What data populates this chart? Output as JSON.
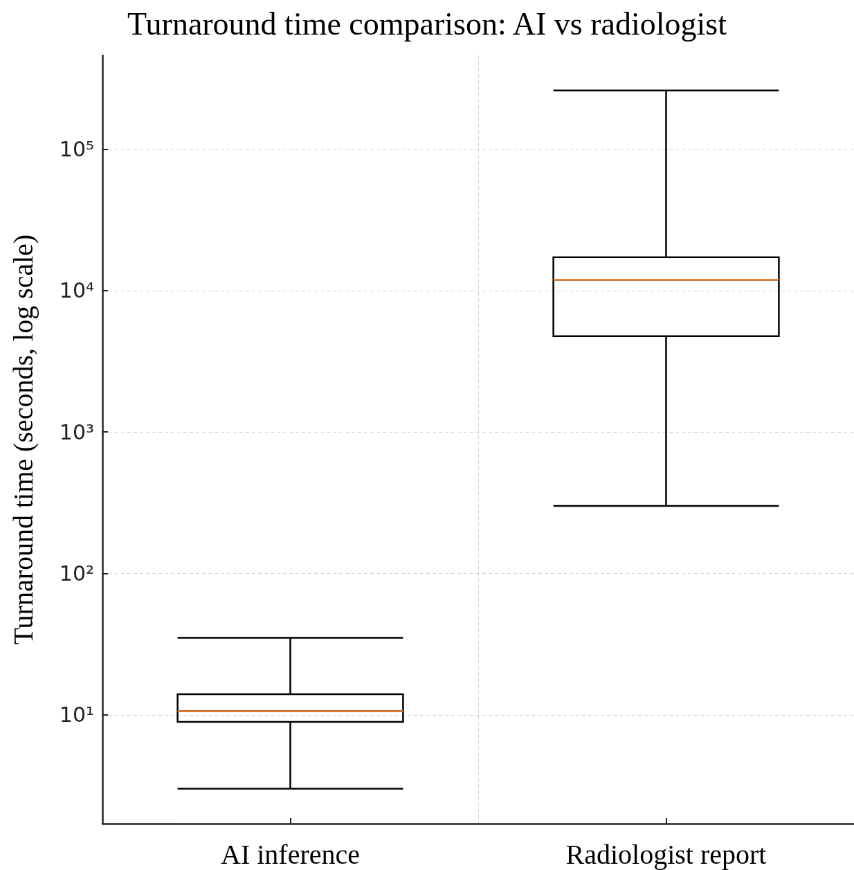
{
  "chart_data": {
    "type": "box",
    "title": "Turnaround time comparison: AI vs radiologist",
    "ylabel": "Turnaround time (seconds, log scale)",
    "categories": [
      "AI inference",
      "Radiologist report"
    ],
    "series": [
      {
        "color": "#000000",
        "boxes": [
          {
            "low": 3,
            "q1": 8.9,
            "median": 10.6,
            "q3": 14,
            "high": 35
          },
          {
            "low": 300,
            "q1": 4750,
            "median": 11900,
            "q3": 17200,
            "high": 260000
          }
        ]
      }
    ],
    "log": true,
    "ylim": [
      1.7,
      460000
    ],
    "yticks": [
      {
        "value": 10,
        "label": "10¹"
      },
      {
        "value": 100,
        "label": "10²"
      },
      {
        "value": 1000,
        "label": "10³"
      },
      {
        "value": 10000,
        "label": "10⁴"
      },
      {
        "value": 100000,
        "label": "10⁵"
      }
    ],
    "grid": true
  }
}
